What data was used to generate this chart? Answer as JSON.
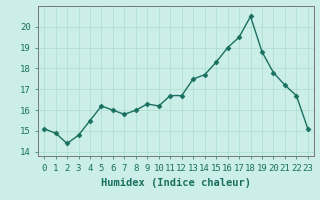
{
  "x": [
    0,
    1,
    2,
    3,
    4,
    5,
    6,
    7,
    8,
    9,
    10,
    11,
    12,
    13,
    14,
    15,
    16,
    17,
    18,
    19,
    20,
    21,
    22,
    23
  ],
  "y": [
    15.1,
    14.9,
    14.4,
    14.8,
    15.5,
    16.2,
    16.0,
    15.8,
    16.0,
    16.3,
    16.2,
    16.7,
    16.7,
    17.5,
    17.7,
    18.3,
    19.0,
    19.5,
    20.5,
    18.8,
    17.8,
    17.2,
    16.7,
    15.1
  ],
  "line_color": "#1a7060",
  "marker": "D",
  "marker_size": 2.5,
  "linewidth": 1.0,
  "xlabel": "Humidex (Indice chaleur)",
  "ylim": [
    13.8,
    21.0
  ],
  "xlim": [
    -0.5,
    23.5
  ],
  "yticks": [
    14,
    15,
    16,
    17,
    18,
    19,
    20
  ],
  "xticks": [
    0,
    1,
    2,
    3,
    4,
    5,
    6,
    7,
    8,
    9,
    10,
    11,
    12,
    13,
    14,
    15,
    16,
    17,
    18,
    19,
    20,
    21,
    22,
    23
  ],
  "bg_color": "#cceee8",
  "grid_color": "#aaddcc",
  "spine_color": "#777777",
  "xlabel_fontsize": 7.5,
  "tick_fontsize": 6.5
}
